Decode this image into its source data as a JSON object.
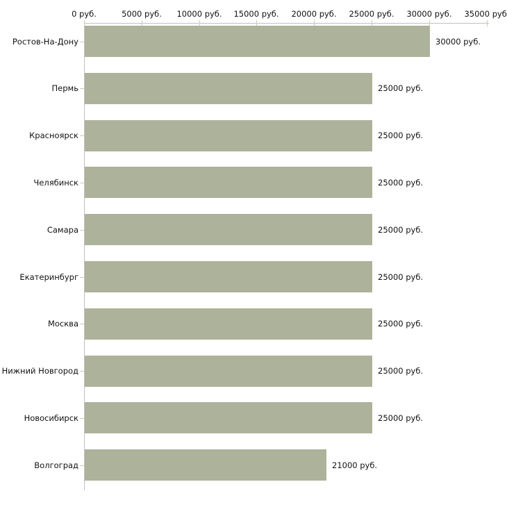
{
  "chart_data": {
    "type": "bar",
    "orientation": "horizontal",
    "title": "",
    "categories": [
      "Ростов-На-Дону",
      "Пермь",
      "Красноярск",
      "Челябинск",
      "Самара",
      "Екатеринбург",
      "Москва",
      "Нижний Новгород",
      "Новосибирск",
      "Волгоград"
    ],
    "values": [
      30000,
      25000,
      25000,
      25000,
      25000,
      25000,
      25000,
      25000,
      25000,
      21000
    ],
    "value_labels": [
      "30000 руб.",
      "25000 руб.",
      "25000 руб.",
      "25000 руб.",
      "25000 руб.",
      "25000 руб.",
      "25000 руб.",
      "25000 руб.",
      "25000 руб.",
      "21000 руб."
    ],
    "x_axis": {
      "position": "top",
      "min": 0,
      "max": 35000,
      "ticks": [
        0,
        5000,
        10000,
        15000,
        20000,
        25000,
        30000,
        35000
      ],
      "tick_labels": [
        "0 руб.",
        "5000 руб.",
        "10000 руб.",
        "15000 руб.",
        "20000 руб.",
        "25000 руб.",
        "30000 руб.",
        "35000 руб."
      ]
    },
    "unit": "руб.",
    "grid": false,
    "legend": false,
    "colors": {
      "bar": "#adb29a",
      "axis_line": "#c0c0c0",
      "tick_mark": "#cacead",
      "text": "#111111",
      "background": "#ffffff"
    }
  }
}
